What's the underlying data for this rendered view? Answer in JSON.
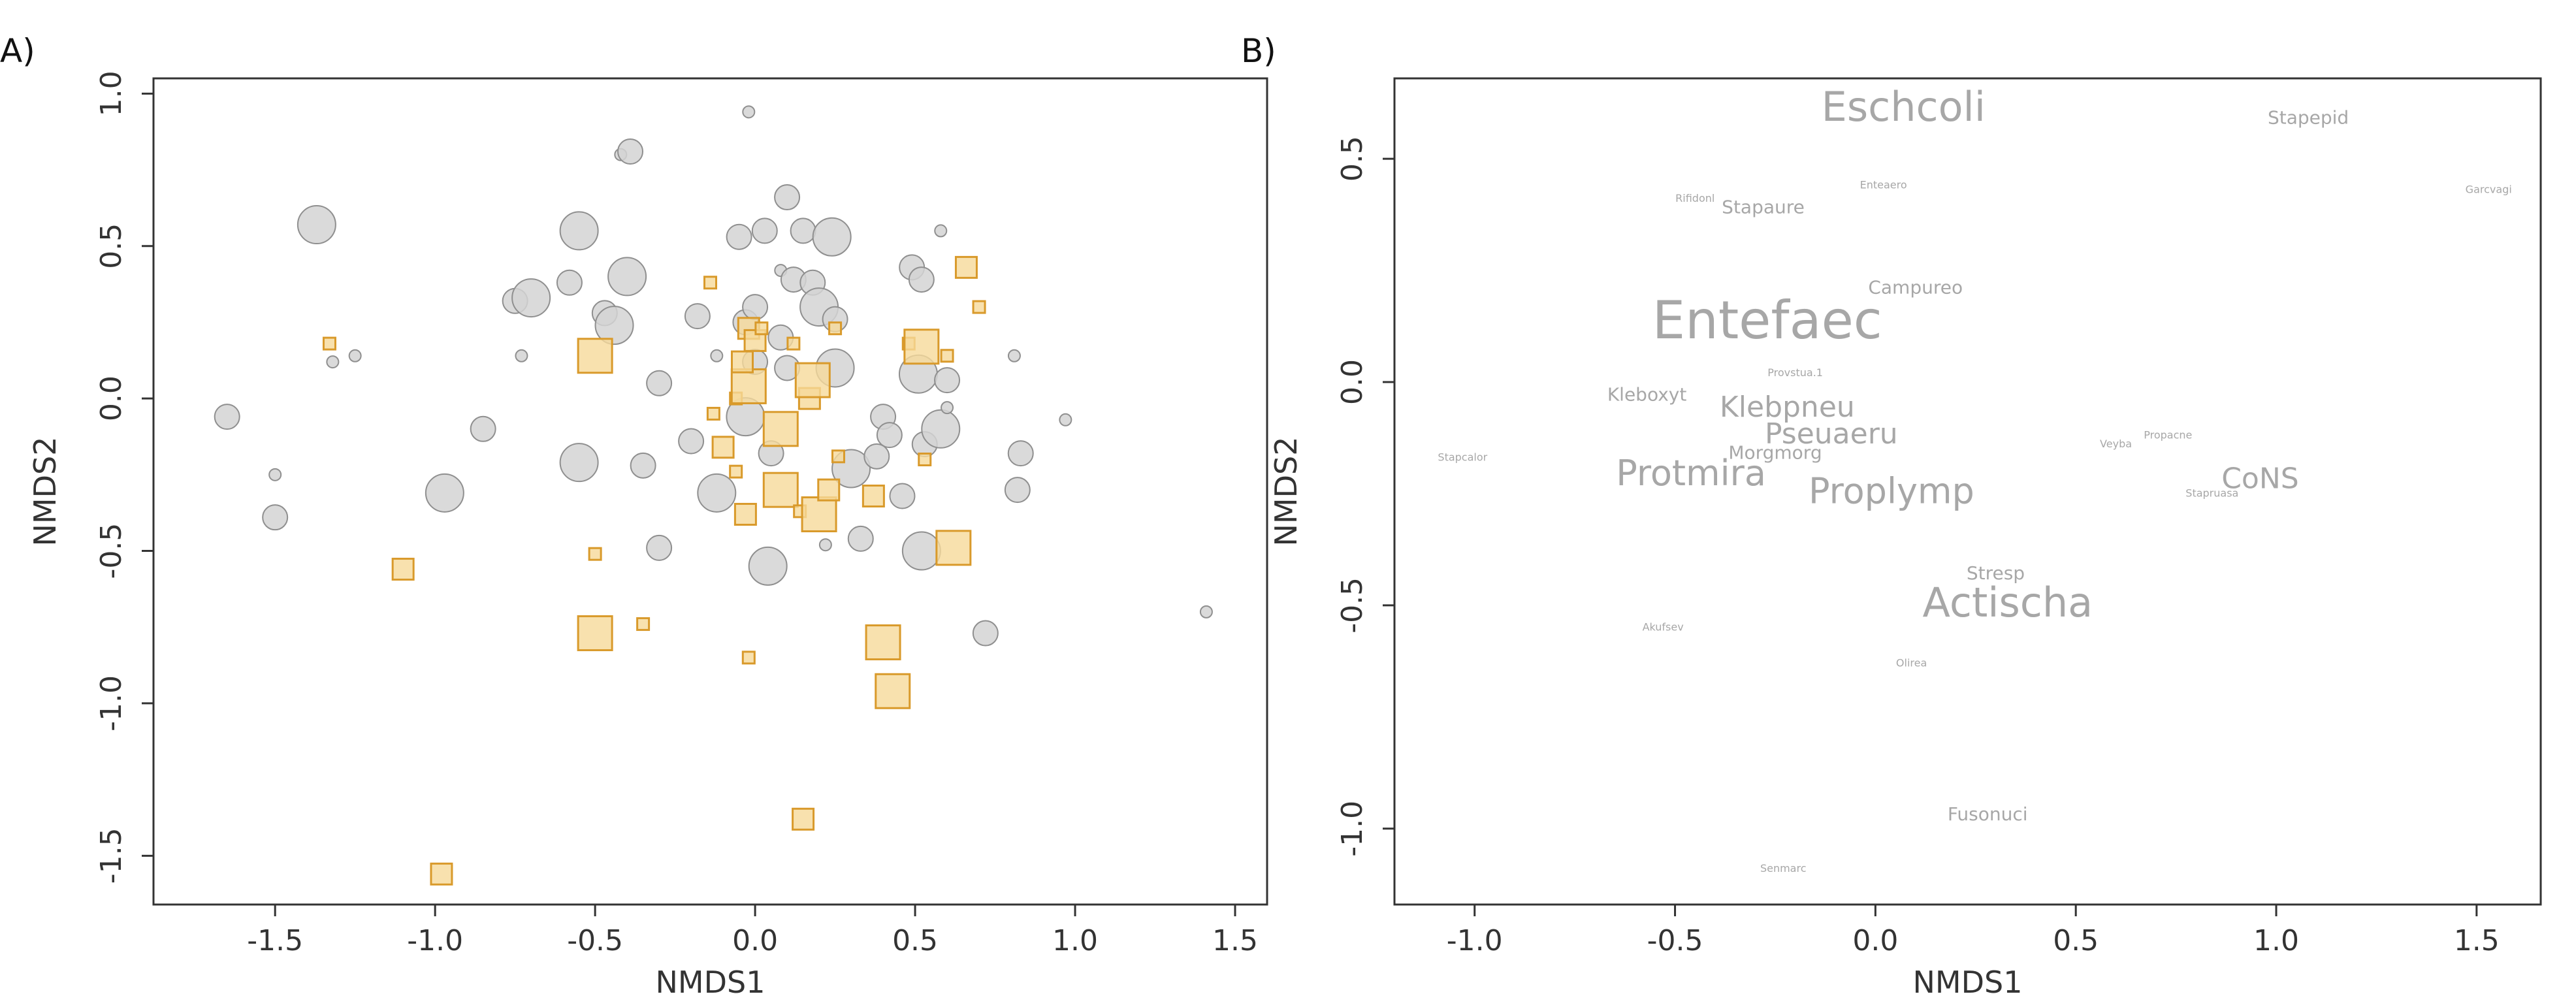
{
  "chart_data": [
    {
      "type": "scatter",
      "panel_label": "A)",
      "xlabel": "NMDS1",
      "ylabel": "NMDS2",
      "xlim": [
        -1.88,
        1.6
      ],
      "ylim": [
        -1.66,
        1.05
      ],
      "xticks": [
        "-1.5",
        "-1.0",
        "-0.5",
        "0.0",
        "0.5",
        "1.0",
        "1.5"
      ],
      "yticks": [
        "1.0",
        "0.5",
        "0.0",
        "-0.5",
        "-1.0",
        "-1.5"
      ],
      "marker_colors": {
        "circle_fill": "#d4d4d4",
        "circle_stroke": "#8f8f8f",
        "square_fill": "#f6d99a",
        "square_stroke": "#d99a2b"
      },
      "series": [
        {
          "marker": "circle",
          "points": [
            {
              "x": -1.65,
              "y": -0.06,
              "s": 2
            },
            {
              "x": -1.5,
              "y": -0.25,
              "s": 1
            },
            {
              "x": -1.5,
              "y": -0.39,
              "s": 2
            },
            {
              "x": -1.37,
              "y": 0.57,
              "s": 3
            },
            {
              "x": -1.32,
              "y": 0.12,
              "s": 1
            },
            {
              "x": -1.25,
              "y": 0.14,
              "s": 1
            },
            {
              "x": -0.97,
              "y": -0.31,
              "s": 3
            },
            {
              "x": -0.85,
              "y": -0.1,
              "s": 2
            },
            {
              "x": -0.75,
              "y": 0.32,
              "s": 2
            },
            {
              "x": -0.73,
              "y": 0.14,
              "s": 1
            },
            {
              "x": -0.7,
              "y": 0.33,
              "s": 3
            },
            {
              "x": -0.55,
              "y": 0.55,
              "s": 3
            },
            {
              "x": -0.55,
              "y": -0.21,
              "s": 3
            },
            {
              "x": -0.58,
              "y": 0.38,
              "s": 2
            },
            {
              "x": -0.47,
              "y": 0.28,
              "s": 2
            },
            {
              "x": -0.42,
              "y": 0.8,
              "s": 1
            },
            {
              "x": -0.39,
              "y": 0.81,
              "s": 2
            },
            {
              "x": -0.4,
              "y": 0.4,
              "s": 3
            },
            {
              "x": -0.44,
              "y": 0.24,
              "s": 3
            },
            {
              "x": -0.35,
              "y": -0.22,
              "s": 2
            },
            {
              "x": -0.3,
              "y": -0.49,
              "s": 2
            },
            {
              "x": -0.3,
              "y": 0.05,
              "s": 2
            },
            {
              "x": -0.2,
              "y": -0.14,
              "s": 2
            },
            {
              "x": -0.18,
              "y": 0.27,
              "s": 2
            },
            {
              "x": -0.12,
              "y": 0.14,
              "s": 1
            },
            {
              "x": -0.12,
              "y": -0.31,
              "s": 3
            },
            {
              "x": -0.05,
              "y": 0.53,
              "s": 2
            },
            {
              "x": -0.02,
              "y": 0.94,
              "s": 1
            },
            {
              "x": -0.03,
              "y": 0.25,
              "s": 2
            },
            {
              "x": -0.03,
              "y": -0.06,
              "s": 3
            },
            {
              "x": 0.0,
              "y": 0.3,
              "s": 2
            },
            {
              "x": 0.0,
              "y": 0.12,
              "s": 2
            },
            {
              "x": 0.03,
              "y": 0.55,
              "s": 2
            },
            {
              "x": 0.05,
              "y": -0.18,
              "s": 2
            },
            {
              "x": 0.08,
              "y": 0.42,
              "s": 1
            },
            {
              "x": 0.04,
              "y": -0.55,
              "s": 3
            },
            {
              "x": 0.08,
              "y": 0.2,
              "s": 2
            },
            {
              "x": 0.1,
              "y": 0.66,
              "s": 2
            },
            {
              "x": 0.12,
              "y": 0.39,
              "s": 2
            },
            {
              "x": 0.1,
              "y": 0.1,
              "s": 2
            },
            {
              "x": 0.15,
              "y": 0.55,
              "s": 2
            },
            {
              "x": 0.18,
              "y": 0.38,
              "s": 2
            },
            {
              "x": 0.2,
              "y": 0.3,
              "s": 3
            },
            {
              "x": 0.24,
              "y": 0.53,
              "s": 3
            },
            {
              "x": 0.25,
              "y": 0.26,
              "s": 2
            },
            {
              "x": 0.25,
              "y": 0.1,
              "s": 3
            },
            {
              "x": 0.22,
              "y": -0.48,
              "s": 1
            },
            {
              "x": 0.3,
              "y": -0.23,
              "s": 3
            },
            {
              "x": 0.33,
              "y": -0.46,
              "s": 2
            },
            {
              "x": 0.4,
              "y": -0.06,
              "s": 2
            },
            {
              "x": 0.38,
              "y": -0.19,
              "s": 2
            },
            {
              "x": 0.42,
              "y": -0.12,
              "s": 2
            },
            {
              "x": 0.46,
              "y": -0.32,
              "s": 2
            },
            {
              "x": 0.49,
              "y": 0.43,
              "s": 2
            },
            {
              "x": 0.52,
              "y": 0.39,
              "s": 2
            },
            {
              "x": 0.51,
              "y": 0.08,
              "s": 3
            },
            {
              "x": 0.53,
              "y": -0.15,
              "s": 2
            },
            {
              "x": 0.52,
              "y": -0.5,
              "s": 3
            },
            {
              "x": 0.58,
              "y": 0.55,
              "s": 1
            },
            {
              "x": 0.58,
              "y": -0.1,
              "s": 3
            },
            {
              "x": 0.6,
              "y": 0.06,
              "s": 2
            },
            {
              "x": 0.6,
              "y": -0.03,
              "s": 1
            },
            {
              "x": 0.72,
              "y": -0.77,
              "s": 2
            },
            {
              "x": 0.81,
              "y": 0.14,
              "s": 1
            },
            {
              "x": 0.83,
              "y": -0.18,
              "s": 2
            },
            {
              "x": 0.82,
              "y": -0.3,
              "s": 2
            },
            {
              "x": 0.97,
              "y": -0.07,
              "s": 1
            },
            {
              "x": 1.41,
              "y": -0.7,
              "s": 1
            }
          ]
        },
        {
          "marker": "square",
          "points": [
            {
              "x": -1.33,
              "y": 0.18,
              "s": 1
            },
            {
              "x": -1.1,
              "y": -0.56,
              "s": 2
            },
            {
              "x": -0.98,
              "y": -1.56,
              "s": 2
            },
            {
              "x": -0.5,
              "y": 0.14,
              "s": 3
            },
            {
              "x": -0.5,
              "y": -0.51,
              "s": 1
            },
            {
              "x": -0.5,
              "y": -0.77,
              "s": 3
            },
            {
              "x": -0.35,
              "y": -0.74,
              "s": 1
            },
            {
              "x": -0.14,
              "y": 0.38,
              "s": 1
            },
            {
              "x": -0.13,
              "y": -0.05,
              "s": 1
            },
            {
              "x": -0.1,
              "y": -0.16,
              "s": 2
            },
            {
              "x": -0.06,
              "y": 0.0,
              "s": 1
            },
            {
              "x": -0.06,
              "y": -0.24,
              "s": 1
            },
            {
              "x": -0.03,
              "y": -0.38,
              "s": 2
            },
            {
              "x": -0.02,
              "y": 0.04,
              "s": 3
            },
            {
              "x": -0.02,
              "y": 0.23,
              "s": 2
            },
            {
              "x": -0.04,
              "y": 0.12,
              "s": 2
            },
            {
              "x": -0.02,
              "y": -0.85,
              "s": 1
            },
            {
              "x": 0.0,
              "y": 0.19,
              "s": 2
            },
            {
              "x": 0.02,
              "y": 0.23,
              "s": 1
            },
            {
              "x": 0.08,
              "y": -0.1,
              "s": 3
            },
            {
              "x": 0.08,
              "y": -0.3,
              "s": 3
            },
            {
              "x": 0.12,
              "y": 0.18,
              "s": 1
            },
            {
              "x": 0.14,
              "y": -0.37,
              "s": 1
            },
            {
              "x": 0.17,
              "y": 0.0,
              "s": 2
            },
            {
              "x": 0.18,
              "y": 0.06,
              "s": 3
            },
            {
              "x": 0.15,
              "y": -1.38,
              "s": 2
            },
            {
              "x": 0.2,
              "y": -0.38,
              "s": 3
            },
            {
              "x": 0.23,
              "y": -0.3,
              "s": 2
            },
            {
              "x": 0.25,
              "y": 0.23,
              "s": 1
            },
            {
              "x": 0.26,
              "y": -0.19,
              "s": 1
            },
            {
              "x": 0.37,
              "y": -0.32,
              "s": 2
            },
            {
              "x": 0.4,
              "y": -0.8,
              "s": 3
            },
            {
              "x": 0.43,
              "y": -0.96,
              "s": 3
            },
            {
              "x": 0.48,
              "y": 0.18,
              "s": 1
            },
            {
              "x": 0.52,
              "y": 0.17,
              "s": 3
            },
            {
              "x": 0.53,
              "y": -0.2,
              "s": 1
            },
            {
              "x": 0.6,
              "y": 0.14,
              "s": 1
            },
            {
              "x": 0.62,
              "y": -0.49,
              "s": 3
            },
            {
              "x": 0.66,
              "y": 0.43,
              "s": 2
            },
            {
              "x": 0.7,
              "y": 0.3,
              "s": 1
            }
          ]
        }
      ]
    },
    {
      "type": "text-scatter",
      "panel_label": "B)",
      "xlabel": "NMDS1",
      "ylabel": "NMDS2",
      "xlim": [
        -1.2,
        1.66
      ],
      "ylim": [
        -1.17,
        0.68
      ],
      "xticks": [
        "-1.0",
        "-0.5",
        "0.0",
        "0.5",
        "1.0",
        "1.5"
      ],
      "yticks": [
        "0.5",
        "0.0",
        "-0.5",
        "-1.0"
      ],
      "label_color": "#a7a7a7",
      "labels": [
        {
          "text": "Eschcoli",
          "x": 0.07,
          "y": 0.61,
          "w": 5
        },
        {
          "text": "Stapepid",
          "x": 1.08,
          "y": 0.59,
          "w": 1
        },
        {
          "text": "Garcvagi",
          "x": 1.53,
          "y": 0.43,
          "w": 0
        },
        {
          "text": "Rifidonl",
          "x": -0.45,
          "y": 0.41,
          "w": 0
        },
        {
          "text": "Enteaero",
          "x": 0.02,
          "y": 0.44,
          "w": 0
        },
        {
          "text": "Stapaure",
          "x": -0.28,
          "y": 0.39,
          "w": 1
        },
        {
          "text": "Campureo",
          "x": 0.1,
          "y": 0.21,
          "w": 1
        },
        {
          "text": "Entefaec",
          "x": -0.27,
          "y": 0.13,
          "w": 6
        },
        {
          "text": "Provstua.1",
          "x": -0.2,
          "y": 0.02,
          "w": 0
        },
        {
          "text": "Kleboxyt",
          "x": -0.57,
          "y": -0.03,
          "w": 1
        },
        {
          "text": "Klebpneu",
          "x": -0.22,
          "y": -0.06,
          "w": 3
        },
        {
          "text": "Pseuaeru",
          "x": -0.11,
          "y": -0.12,
          "w": 3
        },
        {
          "text": "Morgmorg",
          "x": -0.25,
          "y": -0.16,
          "w": 1
        },
        {
          "text": "Stapcalor",
          "x": -1.03,
          "y": -0.17,
          "w": 0
        },
        {
          "text": "Propacne",
          "x": 0.73,
          "y": -0.12,
          "w": 0
        },
        {
          "text": "Veyba",
          "x": 0.6,
          "y": -0.14,
          "w": 0
        },
        {
          "text": "Protmira",
          "x": -0.46,
          "y": -0.21,
          "w": 4
        },
        {
          "text": "CoNS",
          "x": 0.96,
          "y": -0.22,
          "w": 3
        },
        {
          "text": "Stapruasa",
          "x": 0.84,
          "y": -0.25,
          "w": 0
        },
        {
          "text": "Proplymp",
          "x": 0.04,
          "y": -0.25,
          "w": 4
        },
        {
          "text": "Stresp",
          "x": 0.3,
          "y": -0.43,
          "w": 1
        },
        {
          "text": "Actischa",
          "x": 0.33,
          "y": -0.5,
          "w": 5
        },
        {
          "text": "Akufsev",
          "x": -0.53,
          "y": -0.55,
          "w": 0
        },
        {
          "text": "Olirea",
          "x": 0.09,
          "y": -0.63,
          "w": 0
        },
        {
          "text": "Fusonuci",
          "x": 0.28,
          "y": -0.97,
          "w": 1
        },
        {
          "text": "Senmarc",
          "x": -0.23,
          "y": -1.09,
          "w": 0
        }
      ]
    }
  ]
}
